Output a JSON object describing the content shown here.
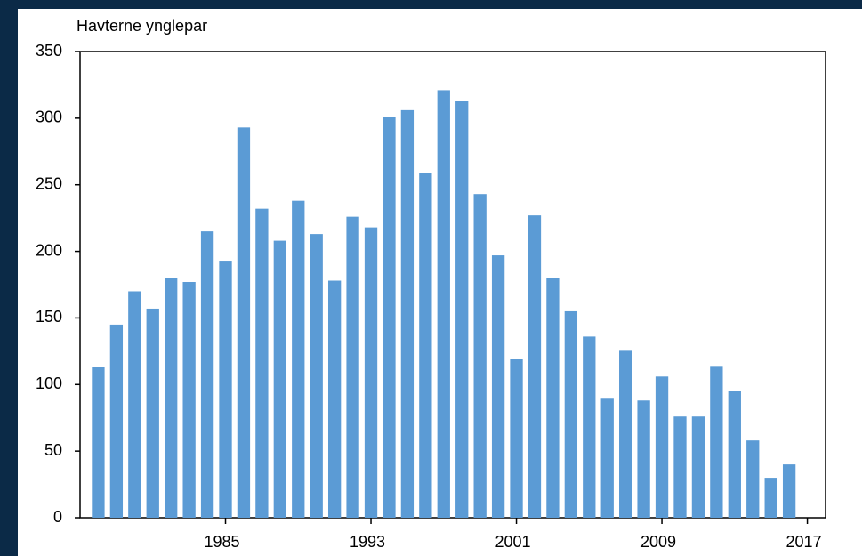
{
  "chart_data": {
    "type": "bar",
    "title": "Havterne ynglepar",
    "x": [
      1978,
      1979,
      1980,
      1981,
      1982,
      1983,
      1984,
      1985,
      1986,
      1987,
      1988,
      1989,
      1990,
      1991,
      1992,
      1993,
      1994,
      1995,
      1996,
      1997,
      1998,
      1999,
      2000,
      2001,
      2002,
      2003,
      2004,
      2005,
      2006,
      2007,
      2008,
      2009,
      2010,
      2011,
      2012,
      2013,
      2014,
      2015,
      2016
    ],
    "values": [
      113,
      145,
      170,
      157,
      180,
      177,
      215,
      193,
      293,
      232,
      208,
      238,
      213,
      178,
      226,
      218,
      301,
      306,
      259,
      321,
      313,
      243,
      197,
      119,
      227,
      180,
      155,
      136,
      90,
      126,
      88,
      106,
      76,
      76,
      114,
      95,
      58,
      30,
      40
    ],
    "color": "#5b9bd5",
    "xlim": [
      1977,
      2018
    ],
    "xticks": [
      1985,
      1993,
      2001,
      2009,
      2017
    ],
    "ylim": [
      0,
      350
    ],
    "yticks": [
      0,
      50,
      100,
      150,
      200,
      250,
      300,
      350
    ],
    "grid": false
  }
}
